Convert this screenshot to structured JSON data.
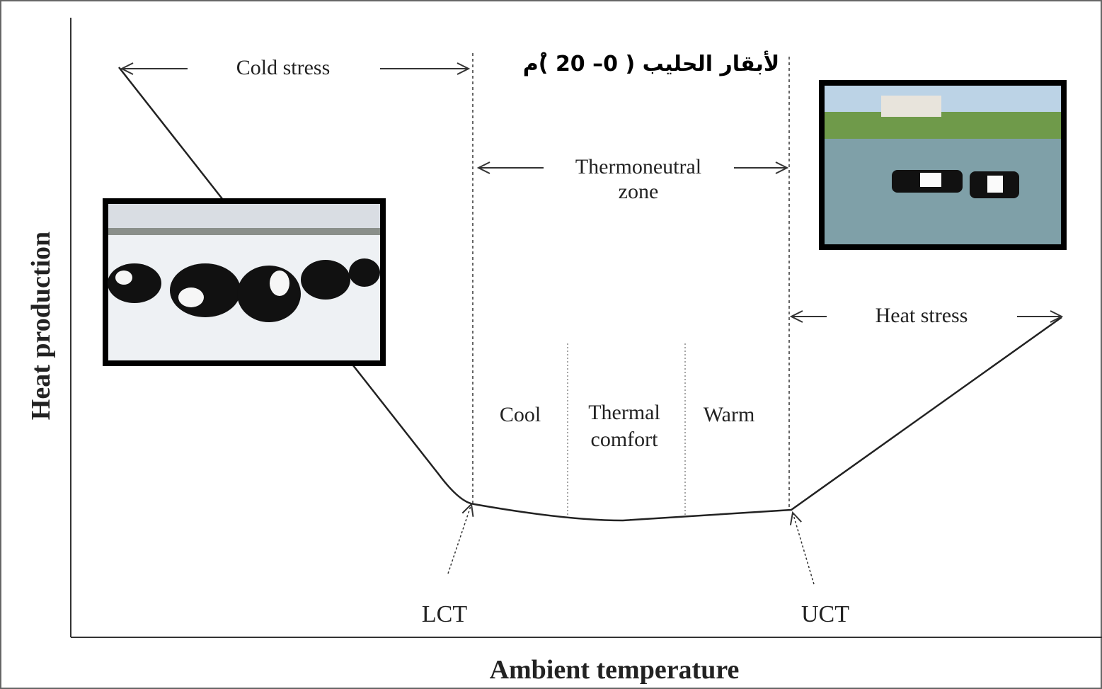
{
  "title": "لأبقار الحليب ( 0– 20 )ْم",
  "axes": {
    "y_label": "Heat production",
    "x_label": "Ambient temperature"
  },
  "zones": {
    "cold_stress": "Cold stress",
    "thermoneutral": [
      "Thermoneutral",
      "zone"
    ],
    "heat_stress": "Heat stress"
  },
  "subzones": {
    "cool": "Cool",
    "thermal_comfort": [
      "Thermal",
      "comfort"
    ],
    "warm": "Warm"
  },
  "thresholds": {
    "lower": "LCT",
    "upper": "UCT"
  }
}
